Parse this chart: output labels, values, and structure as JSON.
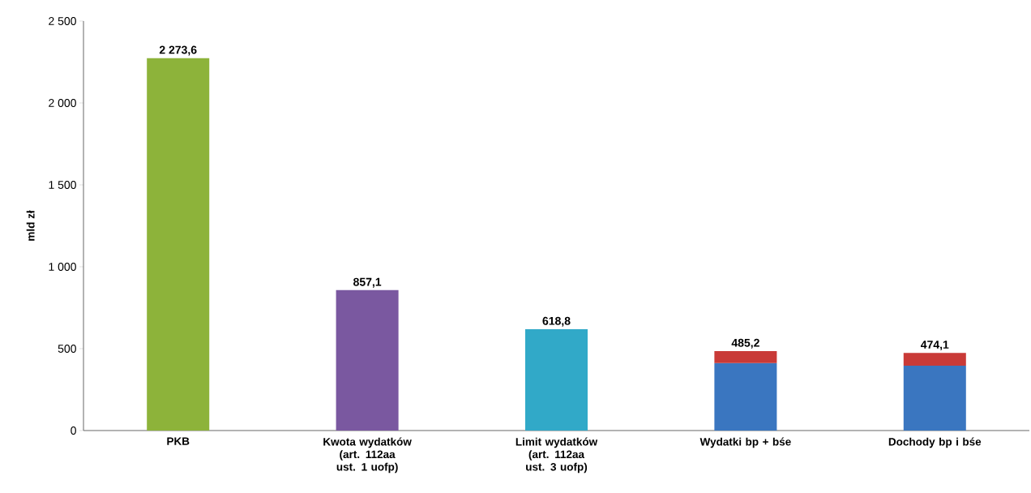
{
  "chart_data": {
    "type": "bar",
    "ylabel": "mld zł",
    "stacked": true,
    "grid": false,
    "categories": [
      "PKB",
      "Kwota wydatków (art. 112aa ust. 1 uofp)",
      "Limit wydatków (art. 112aa ust. 3 uofp)",
      "Wydatki bp + bśe",
      "Dochody bp i bśe"
    ],
    "series": [
      {
        "colors": [
          "#8db33a",
          "#7a58a0",
          "#31a9c8",
          "#3a76c0",
          "#3a76c0"
        ],
        "values": [
          2273.6,
          857.1,
          618.8,
          412,
          396
        ]
      },
      {
        "color": "#c93a37",
        "values": [
          null,
          null,
          null,
          73.2,
          78.1
        ]
      }
    ],
    "totals": [
      "2 273,6",
      "857,1",
      "618,8",
      "485,2",
      "474,1"
    ],
    "ylim": [
      0,
      2500
    ],
    "yticks": [
      0,
      500,
      {
        "value": 1000,
        "label": "1 000"
      },
      {
        "value": 1500,
        "label": "1 500"
      },
      {
        "value": 2000,
        "label": "2 000"
      },
      {
        "value": 2500,
        "label": "2 500"
      }
    ]
  }
}
